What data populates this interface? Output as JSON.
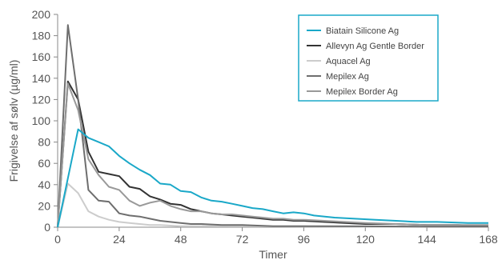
{
  "chart_data": {
    "type": "line",
    "title": "",
    "xlabel": "Timer",
    "ylabel": "Frigivelse af sølv (µg/ml)",
    "xlim": [
      0,
      168
    ],
    "ylim": [
      0,
      200
    ],
    "x_ticks": [
      0,
      24,
      48,
      72,
      96,
      120,
      144,
      168
    ],
    "y_ticks": [
      0,
      20,
      40,
      60,
      80,
      100,
      120,
      140,
      160,
      180,
      200
    ],
    "grid": false,
    "legend_position": "top-right",
    "series": [
      {
        "name": "Biatain Silicone Ag",
        "color": "#1aa8c8",
        "points": [
          [
            0,
            0
          ],
          [
            8,
            92
          ],
          [
            12,
            84
          ],
          [
            16,
            80
          ],
          [
            20,
            76
          ],
          [
            24,
            67
          ],
          [
            28,
            60
          ],
          [
            32,
            54
          ],
          [
            36,
            49
          ],
          [
            40,
            41
          ],
          [
            44,
            40
          ],
          [
            48,
            34
          ],
          [
            52,
            33
          ],
          [
            56,
            28
          ],
          [
            60,
            25
          ],
          [
            64,
            24
          ],
          [
            68,
            22
          ],
          [
            72,
            20
          ],
          [
            76,
            18
          ],
          [
            80,
            17
          ],
          [
            84,
            15
          ],
          [
            88,
            13
          ],
          [
            92,
            14
          ],
          [
            96,
            13
          ],
          [
            100,
            11
          ],
          [
            108,
            9
          ],
          [
            116,
            8
          ],
          [
            124,
            7
          ],
          [
            132,
            6
          ],
          [
            140,
            5
          ],
          [
            148,
            5
          ],
          [
            160,
            4
          ],
          [
            168,
            4
          ]
        ]
      },
      {
        "name": "Allevyn Ag Gentle Border",
        "color": "#333333",
        "points": [
          [
            0,
            0
          ],
          [
            4,
            137
          ],
          [
            8,
            120
          ],
          [
            12,
            71
          ],
          [
            16,
            52
          ],
          [
            20,
            50
          ],
          [
            24,
            48
          ],
          [
            28,
            38
          ],
          [
            32,
            36
          ],
          [
            36,
            29
          ],
          [
            40,
            26
          ],
          [
            44,
            22
          ],
          [
            48,
            21
          ],
          [
            52,
            17
          ],
          [
            56,
            15
          ],
          [
            60,
            13
          ],
          [
            64,
            12
          ],
          [
            68,
            11
          ],
          [
            72,
            10
          ],
          [
            76,
            9
          ],
          [
            80,
            8
          ],
          [
            84,
            7
          ],
          [
            88,
            7
          ],
          [
            92,
            6
          ],
          [
            96,
            6
          ],
          [
            104,
            5
          ],
          [
            112,
            4
          ],
          [
            120,
            3
          ],
          [
            132,
            3
          ],
          [
            144,
            2
          ],
          [
            156,
            2
          ],
          [
            168,
            1
          ]
        ]
      },
      {
        "name": "Aquacel Ag",
        "color": "#cccccc",
        "points": [
          [
            0,
            0
          ],
          [
            4,
            41
          ],
          [
            8,
            32
          ],
          [
            12,
            15
          ],
          [
            16,
            10
          ],
          [
            20,
            7
          ],
          [
            24,
            5
          ],
          [
            28,
            4
          ],
          [
            32,
            3
          ],
          [
            36,
            2
          ],
          [
            40,
            2
          ],
          [
            48,
            1
          ],
          [
            60,
            1
          ],
          [
            72,
            0.8
          ],
          [
            96,
            0.5
          ],
          [
            120,
            0.4
          ],
          [
            144,
            0.3
          ],
          [
            168,
            0.3
          ]
        ]
      },
      {
        "name": "Mepilex Ag",
        "color": "#6e6e6e",
        "points": [
          [
            0,
            0
          ],
          [
            4,
            190
          ],
          [
            8,
            120
          ],
          [
            12,
            35
          ],
          [
            16,
            25
          ],
          [
            20,
            24
          ],
          [
            24,
            13
          ],
          [
            28,
            11
          ],
          [
            32,
            10
          ],
          [
            36,
            8
          ],
          [
            40,
            6
          ],
          [
            44,
            5
          ],
          [
            48,
            4
          ],
          [
            52,
            3
          ],
          [
            56,
            3
          ],
          [
            64,
            2
          ],
          [
            72,
            2
          ],
          [
            84,
            1
          ],
          [
            96,
            1
          ],
          [
            120,
            0.8
          ],
          [
            144,
            0.6
          ],
          [
            168,
            0.5
          ]
        ]
      },
      {
        "name": "Mepilex Border Ag",
        "color": "#999999",
        "points": [
          [
            0,
            0
          ],
          [
            4,
            135
          ],
          [
            8,
            110
          ],
          [
            12,
            64
          ],
          [
            16,
            49
          ],
          [
            20,
            38
          ],
          [
            24,
            35
          ],
          [
            28,
            25
          ],
          [
            32,
            20
          ],
          [
            36,
            23
          ],
          [
            40,
            25
          ],
          [
            44,
            20
          ],
          [
            48,
            17
          ],
          [
            52,
            15
          ],
          [
            56,
            15
          ],
          [
            60,
            13
          ],
          [
            64,
            12
          ],
          [
            68,
            12
          ],
          [
            72,
            11
          ],
          [
            76,
            10
          ],
          [
            80,
            9
          ],
          [
            84,
            8
          ],
          [
            88,
            8
          ],
          [
            92,
            7
          ],
          [
            96,
            7
          ],
          [
            104,
            6
          ],
          [
            112,
            5
          ],
          [
            120,
            4
          ],
          [
            132,
            3
          ],
          [
            144,
            2
          ],
          [
            156,
            2
          ],
          [
            168,
            2
          ]
        ]
      }
    ]
  }
}
